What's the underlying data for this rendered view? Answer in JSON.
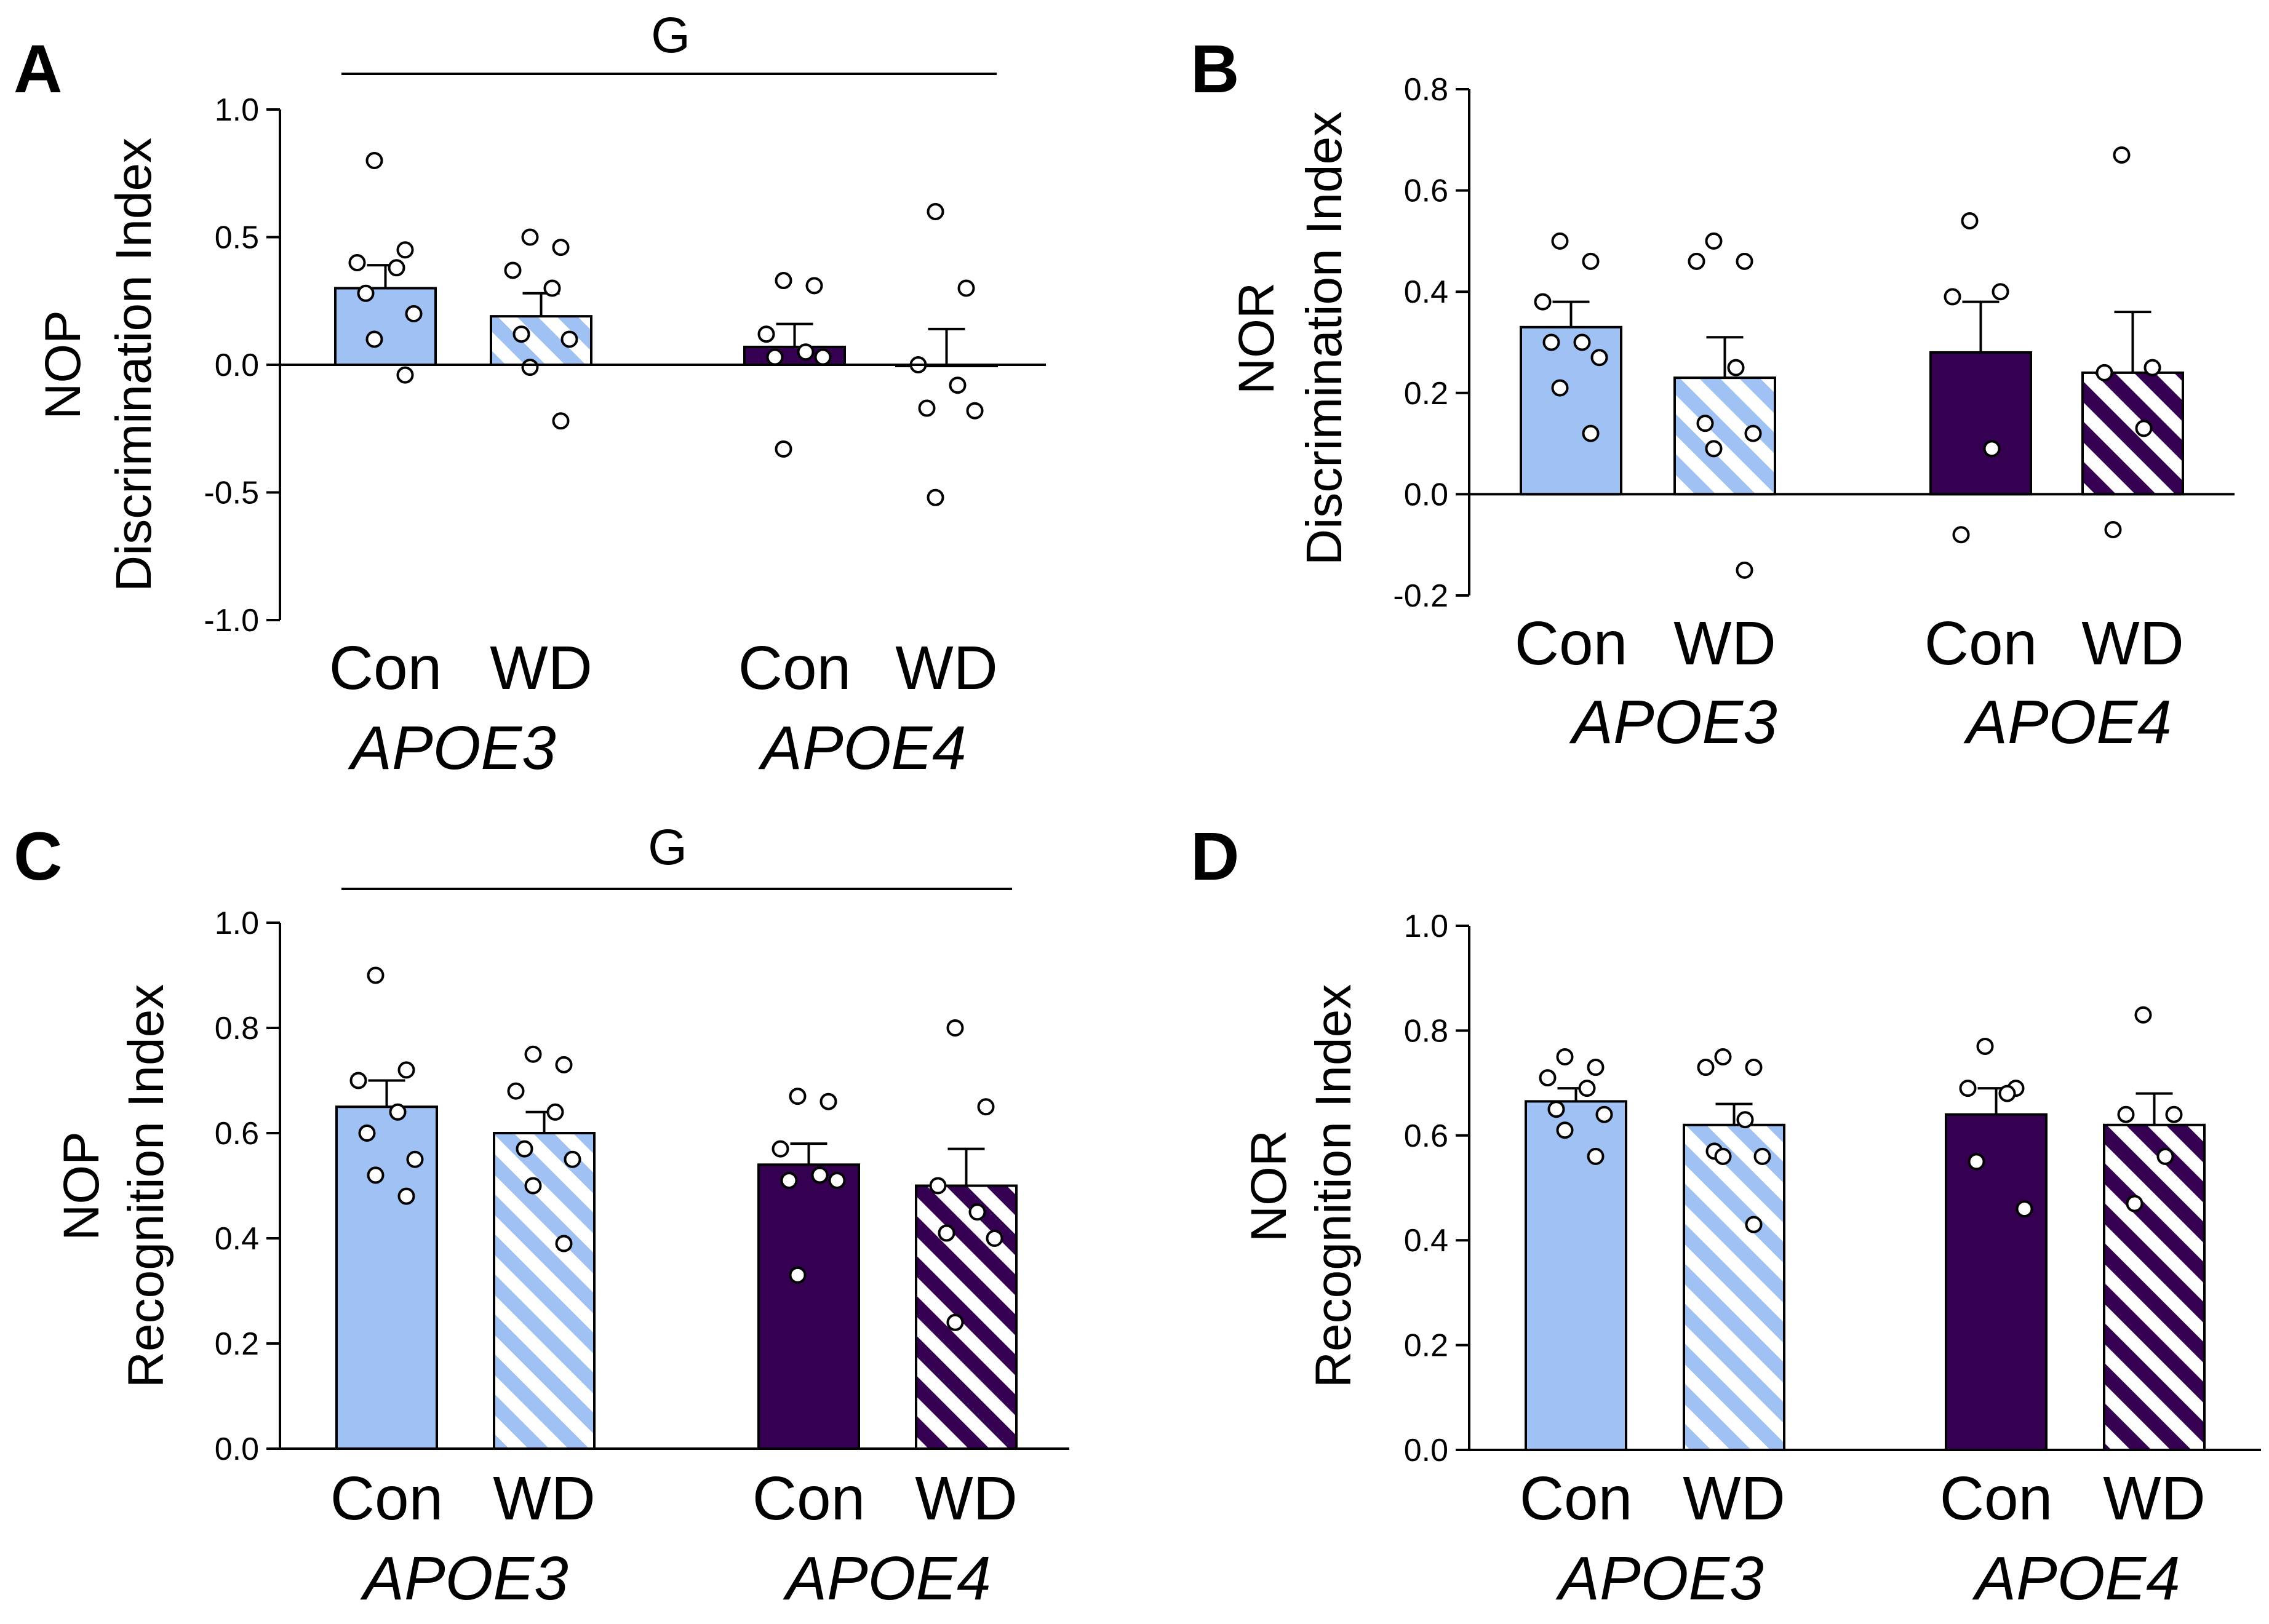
{
  "colors": {
    "apoe3": "#a0c1f3",
    "apoe4": "#350051",
    "stroke": "#000000",
    "stripe_bg": "#ffffff"
  },
  "chart_data": [
    {
      "panel": "A",
      "type": "bar",
      "ylabel_line1": "NOP",
      "ylabel_line2": "Discrimination Index",
      "ylim": [
        -1.0,
        1.0
      ],
      "yticks": [
        "1.0",
        "0.5",
        "0.0",
        "-0.5",
        "-1.0"
      ],
      "categories": [
        "Con",
        "WD",
        "Con",
        "WD"
      ],
      "groups": [
        "APOE3",
        "APOE4"
      ],
      "significance": "G",
      "series": [
        {
          "name": "APOE3 Con",
          "group": "APOE3",
          "diet": "Con",
          "mean": 0.3,
          "sem": 0.09,
          "points": [
            0.8,
            0.45,
            0.4,
            0.38,
            0.28,
            0.2,
            0.1,
            -0.04
          ]
        },
        {
          "name": "APOE3 WD",
          "group": "APOE3",
          "diet": "WD",
          "mean": 0.19,
          "sem": 0.09,
          "points": [
            0.5,
            0.46,
            0.37,
            0.3,
            0.12,
            0.1,
            -0.01,
            -0.22
          ]
        },
        {
          "name": "APOE4 Con",
          "group": "APOE4",
          "diet": "Con",
          "mean": 0.07,
          "sem": 0.09,
          "points": [
            0.33,
            0.31,
            0.12,
            0.05,
            0.03,
            0.03,
            -0.33
          ]
        },
        {
          "name": "APOE4 WD",
          "group": "APOE4",
          "diet": "WD",
          "mean": 0.0,
          "sem": 0.14,
          "points": [
            0.6,
            0.3,
            0.0,
            -0.08,
            -0.17,
            -0.18,
            -0.52
          ]
        }
      ]
    },
    {
      "panel": "B",
      "type": "bar",
      "ylabel_line1": "NOR",
      "ylabel_line2": "Discrimination Index",
      "ylim": [
        -0.2,
        0.8
      ],
      "yticks": [
        "0.8",
        "0.6",
        "0.4",
        "0.2",
        "0.0",
        "-0.2"
      ],
      "categories": [
        "Con",
        "WD",
        "Con",
        "WD"
      ],
      "groups": [
        "APOE3",
        "APOE4"
      ],
      "significance": "",
      "series": [
        {
          "name": "APOE3 Con",
          "group": "APOE3",
          "diet": "Con",
          "mean": 0.33,
          "sem": 0.05,
          "points": [
            0.5,
            0.46,
            0.38,
            0.3,
            0.3,
            0.27,
            0.21,
            0.12
          ]
        },
        {
          "name": "APOE3 WD",
          "group": "APOE3",
          "diet": "WD",
          "mean": 0.23,
          "sem": 0.08,
          "points": [
            0.5,
            0.46,
            0.46,
            0.25,
            0.14,
            0.12,
            0.09,
            -0.15
          ]
        },
        {
          "name": "APOE4 Con",
          "group": "APOE4",
          "diet": "Con",
          "mean": 0.28,
          "sem": 0.1,
          "points": [
            0.54,
            0.4,
            0.39,
            0.09,
            -0.08
          ]
        },
        {
          "name": "APOE4 WD",
          "group": "APOE4",
          "diet": "WD",
          "mean": 0.24,
          "sem": 0.12,
          "points": [
            0.67,
            0.25,
            0.24,
            0.13,
            -0.07
          ]
        }
      ]
    },
    {
      "panel": "C",
      "type": "bar",
      "ylabel_line1": "NOP",
      "ylabel_line2": "Recognition Index",
      "ylim": [
        0.0,
        1.0
      ],
      "yticks": [
        "1.0",
        "0.8",
        "0.6",
        "0.4",
        "0.2",
        "0.0"
      ],
      "categories": [
        "Con",
        "WD",
        "Con",
        "WD"
      ],
      "groups": [
        "APOE3",
        "APOE4"
      ],
      "significance": "G",
      "series": [
        {
          "name": "APOE3 Con",
          "group": "APOE3",
          "diet": "Con",
          "mean": 0.65,
          "sem": 0.05,
          "points": [
            0.9,
            0.72,
            0.7,
            0.64,
            0.6,
            0.55,
            0.52,
            0.48
          ]
        },
        {
          "name": "APOE3 WD",
          "group": "APOE3",
          "diet": "WD",
          "mean": 0.6,
          "sem": 0.04,
          "points": [
            0.75,
            0.73,
            0.68,
            0.64,
            0.57,
            0.55,
            0.5,
            0.39
          ]
        },
        {
          "name": "APOE4 Con",
          "group": "APOE4",
          "diet": "Con",
          "mean": 0.54,
          "sem": 0.04,
          "points": [
            0.67,
            0.66,
            0.57,
            0.52,
            0.51,
            0.51,
            0.33
          ]
        },
        {
          "name": "APOE4 WD",
          "group": "APOE4",
          "diet": "WD",
          "mean": 0.5,
          "sem": 0.07,
          "points": [
            0.8,
            0.65,
            0.5,
            0.45,
            0.41,
            0.4,
            0.24
          ]
        }
      ]
    },
    {
      "panel": "D",
      "type": "bar",
      "ylabel_line1": "NOR",
      "ylabel_line2": "Recognition Index",
      "ylim": [
        0.0,
        1.0
      ],
      "yticks": [
        "1.0",
        "0.8",
        "0.6",
        "0.4",
        "0.2",
        "0.0"
      ],
      "categories": [
        "Con",
        "WD",
        "Con",
        "WD"
      ],
      "groups": [
        "APOE3",
        "APOE4"
      ],
      "significance": "",
      "series": [
        {
          "name": "APOE3 Con",
          "group": "APOE3",
          "diet": "Con",
          "mean": 0.665,
          "sem": 0.025,
          "points": [
            0.75,
            0.73,
            0.71,
            0.69,
            0.65,
            0.64,
            0.61,
            0.56
          ]
        },
        {
          "name": "APOE3 WD",
          "group": "APOE3",
          "diet": "WD",
          "mean": 0.62,
          "sem": 0.04,
          "points": [
            0.75,
            0.73,
            0.73,
            0.63,
            0.57,
            0.56,
            0.56,
            0.43
          ]
        },
        {
          "name": "APOE4 Con",
          "group": "APOE4",
          "diet": "Con",
          "mean": 0.64,
          "sem": 0.05,
          "points": [
            0.77,
            0.69,
            0.69,
            0.68,
            0.55,
            0.46
          ]
        },
        {
          "name": "APOE4 WD",
          "group": "APOE4",
          "diet": "WD",
          "mean": 0.62,
          "sem": 0.06,
          "points": [
            0.83,
            0.64,
            0.64,
            0.56,
            0.47
          ]
        }
      ]
    }
  ]
}
